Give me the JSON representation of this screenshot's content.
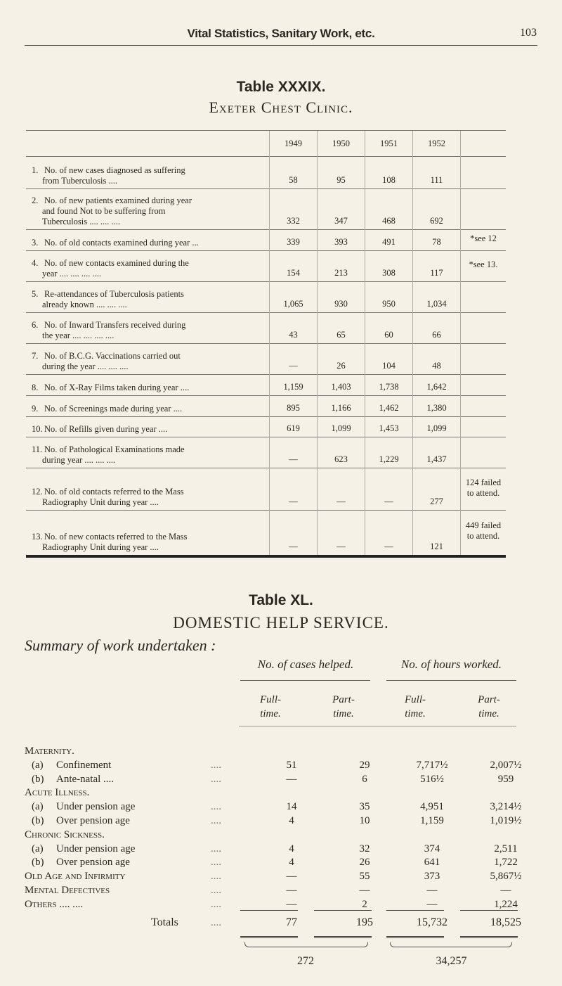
{
  "header": {
    "title": "Vital Statistics, Sanitary Work, etc.",
    "page_number": "103"
  },
  "table39": {
    "title": "Table XXXIX.",
    "subtitle": "Exeter Chest Clinic.",
    "years": [
      "1949",
      "1950",
      "1951",
      "1952"
    ],
    "rows": [
      {
        "num": "1.",
        "first": "No. of new cases diagnosed as suffering",
        "rest": [
          "from Tuberculosis ...."
        ],
        "values": [
          "58",
          "95",
          "108",
          "111"
        ],
        "note": ""
      },
      {
        "num": "2.",
        "first": "No. of new patients examined during year",
        "rest": [
          "and found Not to be suffering from",
          "Tuberculosis .... .... ...."
        ],
        "values": [
          "332",
          "347",
          "468",
          "692"
        ],
        "note": ""
      },
      {
        "num": "3.",
        "first": "No. of old contacts examined during year ...",
        "rest": [],
        "values": [
          "339",
          "393",
          "491",
          "78"
        ],
        "note": "*see 12"
      },
      {
        "num": "4.",
        "first": "No. of new contacts examined during the",
        "rest": [
          "year .... .... .... ...."
        ],
        "values": [
          "154",
          "213",
          "308",
          "117"
        ],
        "note": "*see 13."
      },
      {
        "num": "5.",
        "first": "Re-attendances of Tuberculosis patients",
        "rest": [
          "already known .... .... ...."
        ],
        "values": [
          "1,065",
          "930",
          "950",
          "1,034"
        ],
        "note": ""
      },
      {
        "num": "6.",
        "first": "No. of Inward Transfers received during",
        "rest": [
          "the year .... .... .... ...."
        ],
        "values": [
          "43",
          "65",
          "60",
          "66"
        ],
        "note": ""
      },
      {
        "num": "7.",
        "first": "No. of B.C.G. Vaccinations carried out",
        "rest": [
          "during the year .... .... ...."
        ],
        "values": [
          "—",
          "26",
          "104",
          "48"
        ],
        "note": ""
      },
      {
        "num": "8.",
        "first": "No. of X-Ray Films taken during year ....",
        "rest": [],
        "values": [
          "1,159",
          "1,403",
          "1,738",
          "1,642"
        ],
        "note": ""
      },
      {
        "num": "9.",
        "first": "No. of Screenings made during year ....",
        "rest": [],
        "values": [
          "895",
          "1,166",
          "1,462",
          "1,380"
        ],
        "note": ""
      },
      {
        "num": "10.",
        "first": "No. of Refills given during year ....",
        "rest": [],
        "values": [
          "619",
          "1,099",
          "1,453",
          "1,099"
        ],
        "note": ""
      },
      {
        "num": "11.",
        "first": "No. of Pathological Examinations made",
        "rest": [
          "during year .... .... ...."
        ],
        "values": [
          "—",
          "623",
          "1,229",
          "1,437"
        ],
        "note": ""
      },
      {
        "num": "12.",
        "first": "No. of old contacts referred to the Mass",
        "rest": [
          "Radiography Unit during year ...."
        ],
        "values": [
          "—",
          "—",
          "—",
          "277"
        ],
        "note": "124 failed to attend."
      },
      {
        "num": "13.",
        "first": "No. of new contacts referred to the Mass",
        "rest": [
          "Radiography Unit during year ...."
        ],
        "values": [
          "—",
          "—",
          "—",
          "121"
        ],
        "note": "449 failed to attend."
      }
    ]
  },
  "table40": {
    "title": "Table XL.",
    "subtitle": "DOMESTIC HELP SERVICE.",
    "summary": "Summary of work undertaken :",
    "group1": "No. of cases helped.",
    "group2": "No. of hours worked.",
    "col_headers": [
      [
        "Full-",
        "time."
      ],
      [
        "Part-",
        "time."
      ],
      [
        "Full-",
        "time."
      ],
      [
        "Part-",
        "time."
      ]
    ],
    "rows": [
      {
        "type": "section",
        "label": "Maternity."
      },
      {
        "type": "item",
        "prefix": "(a)",
        "label": "Confinement",
        "values": [
          "51",
          "29",
          "7,717½",
          "2,007½"
        ]
      },
      {
        "type": "item",
        "prefix": "(b)",
        "label": "Ante-natal ....",
        "values": [
          "—",
          "6",
          "516½",
          "959"
        ]
      },
      {
        "type": "section",
        "label": "Acute Illness."
      },
      {
        "type": "item",
        "prefix": "(a)",
        "label": "Under pension age",
        "values": [
          "14",
          "35",
          "4,951",
          "3,214½"
        ]
      },
      {
        "type": "item",
        "prefix": "(b)",
        "label": "Over pension age",
        "values": [
          "4",
          "10",
          "1,159",
          "1,019½"
        ]
      },
      {
        "type": "section",
        "label": "Chronic Sickness."
      },
      {
        "type": "item",
        "prefix": "(a)",
        "label": "Under pension age",
        "values": [
          "4",
          "32",
          "374",
          "2,511"
        ]
      },
      {
        "type": "item",
        "prefix": "(b)",
        "label": "Over pension age",
        "values": [
          "4",
          "26",
          "641",
          "1,722"
        ]
      },
      {
        "type": "main",
        "label": "Old Age and Infirmity",
        "values": [
          "—",
          "55",
          "373",
          "5,867½"
        ]
      },
      {
        "type": "main",
        "label": "Mental Defectives",
        "values": [
          "—",
          "—",
          "—",
          "—"
        ]
      },
      {
        "type": "main",
        "label": "Others .... ....",
        "values": [
          "—",
          "2",
          "—",
          "1,224"
        ]
      }
    ],
    "totals_label": "Totals",
    "totals": [
      "77",
      "195",
      "15,732",
      "18,525"
    ],
    "grand_cases": "272",
    "grand_hours": "34,257"
  }
}
